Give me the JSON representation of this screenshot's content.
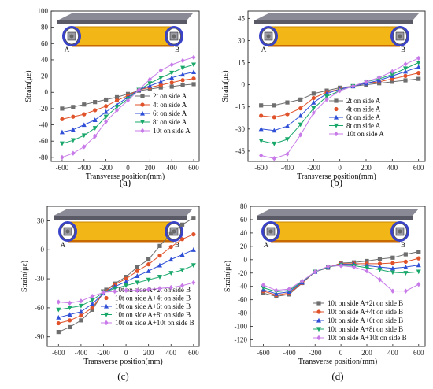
{
  "colors": {
    "2t": "#6e6e6e",
    "4t": "#e0522a",
    "6t": "#2f4fd6",
    "8t": "#19a86a",
    "10t": "#c87be8",
    "beam": "#f2b617",
    "deck": "#5a5a66"
  },
  "markers": [
    "square",
    "circle",
    "triangle-up",
    "triangle-down",
    "diamond"
  ],
  "diagram": {
    "label_a": "A",
    "label_b": "B"
  },
  "chart_data": [
    {
      "panel_label": "(a)",
      "type": "line",
      "xlabel": "Transverse position(mm)",
      "ylabel": "Strain(με)",
      "xlim": [
        -700,
        650
      ],
      "ylim": [
        -85,
        100
      ],
      "xticks": [
        -600,
        -400,
        -200,
        0,
        200,
        400,
        600
      ],
      "yticks": [
        -80,
        -60,
        -40,
        -20,
        0,
        20,
        40,
        60,
        80,
        100
      ],
      "x": [
        -600,
        -500,
        -400,
        -300,
        -200,
        -100,
        0,
        100,
        200,
        300,
        400,
        500,
        600
      ],
      "legend_position": "center-right",
      "series": [
        {
          "name": "2t    on side A",
          "key": "2t",
          "values": [
            -20,
            -18,
            -15,
            -12,
            -9,
            -6,
            -2,
            2,
            4,
            6,
            7,
            9,
            10
          ]
        },
        {
          "name": "4t    on side A",
          "key": "4t",
          "values": [
            -33,
            -30,
            -27,
            -22,
            -17,
            -10,
            -4,
            3,
            6,
            9,
            12,
            15,
            17
          ]
        },
        {
          "name": "6t    on side A",
          "key": "6t",
          "values": [
            -49,
            -46,
            -40,
            -34,
            -24,
            -15,
            -6,
            3,
            8,
            13,
            18,
            22,
            25
          ]
        },
        {
          "name": "8t    on side A",
          "key": "8t",
          "values": [
            -63,
            -59,
            -53,
            -44,
            -30,
            -18,
            -8,
            3,
            11,
            18,
            24,
            30,
            34
          ]
        },
        {
          "name": "10t  on side A",
          "key": "10t",
          "values": [
            -80,
            -75,
            -67,
            -54,
            -36,
            -22,
            -10,
            3,
            16,
            27,
            34,
            39,
            43
          ]
        }
      ]
    },
    {
      "panel_label": "(b)",
      "type": "line",
      "xlabel": "Transverse position(mm)",
      "ylabel": "Strain(με)",
      "xlim": [
        -700,
        650
      ],
      "ylim": [
        -52,
        50
      ],
      "xticks": [
        -600,
        -400,
        -200,
        0,
        200,
        400,
        600
      ],
      "yticks": [
        -45,
        -30,
        -15,
        0,
        15,
        30,
        45
      ],
      "x": [
        -600,
        -500,
        -400,
        -300,
        -200,
        -100,
        0,
        100,
        200,
        300,
        400,
        500,
        600
      ],
      "legend_position": "center-right",
      "series": [
        {
          "name": "2t    on side A",
          "key": "2t",
          "values": [
            -14,
            -14,
            -12,
            -10,
            -6,
            -4,
            -2,
            -1,
            0,
            1,
            2,
            3,
            4
          ]
        },
        {
          "name": "4t    on side A",
          "key": "4t",
          "values": [
            -21,
            -22,
            -20,
            -16,
            -9,
            -5,
            -3,
            -1,
            1,
            2,
            4,
            6,
            8
          ]
        },
        {
          "name": "6t    on side A",
          "key": "6t",
          "values": [
            -30,
            -31,
            -28,
            -21,
            -12,
            -6,
            -3,
            -1,
            1,
            3,
            6,
            9,
            12
          ]
        },
        {
          "name": "8t    on side A",
          "key": "8t",
          "values": [
            -38,
            -40,
            -37,
            -27,
            -16,
            -8,
            -4,
            -1,
            2,
            4,
            7,
            11,
            15
          ]
        },
        {
          "name": "10t  on side A",
          "key": "10t",
          "values": [
            -48,
            -50,
            -47,
            -34,
            -19,
            -10,
            -4,
            -1,
            2,
            5,
            9,
            14,
            18
          ]
        }
      ]
    },
    {
      "panel_label": "(c)",
      "type": "line",
      "xlabel": "Transverse position(mm)",
      "ylabel": "Strain(με)",
      "xlim": [
        -700,
        650
      ],
      "ylim": [
        -100,
        45
      ],
      "xticks": [
        -600,
        -400,
        -200,
        0,
        200,
        400,
        600
      ],
      "yticks": [
        -90,
        -60,
        -30,
        0,
        30
      ],
      "x": [
        -600,
        -500,
        -400,
        -300,
        -200,
        -100,
        0,
        100,
        200,
        300,
        400,
        500,
        600
      ],
      "legend_position": "bottom-right",
      "series": [
        {
          "name": "10t on side A+2t    on side B",
          "key": "2t",
          "values": [
            -85,
            -80,
            -73,
            -62,
            -44,
            -35,
            -28,
            -18,
            -10,
            4,
            17,
            26,
            33
          ]
        },
        {
          "name": "10t on side A+4t    on side B",
          "key": "4t",
          "values": [
            -76,
            -73,
            -68,
            -60,
            -44,
            -36,
            -30,
            -22,
            -15,
            -6,
            3,
            11,
            16
          ]
        },
        {
          "name": "10t on side A+6t    on side B",
          "key": "6t",
          "values": [
            -70,
            -67,
            -64,
            -56,
            -45,
            -38,
            -33,
            -27,
            -22,
            -16,
            -10,
            -5,
            0
          ]
        },
        {
          "name": "10t on side A+8t    on side B",
          "key": "8t",
          "values": [
            -62,
            -60,
            -58,
            -52,
            -44,
            -40,
            -37,
            -34,
            -31,
            -28,
            -24,
            -21,
            -16
          ]
        },
        {
          "name": "10t on side A+10t  on side B",
          "key": "10t",
          "values": [
            -54,
            -55,
            -53,
            -48,
            -44,
            -43,
            -42,
            -42,
            -41,
            -40,
            -39,
            -37,
            -34
          ]
        }
      ]
    },
    {
      "panel_label": "(d)",
      "type": "line",
      "xlabel": "Transverse position(mm)",
      "ylabel": "Strain(με)",
      "xlim": [
        -700,
        650
      ],
      "ylim": [
        -130,
        80
      ],
      "xticks": [
        -600,
        -400,
        -200,
        0,
        200,
        400,
        600
      ],
      "yticks": [
        -120,
        -100,
        -80,
        -60,
        -40,
        -20,
        0,
        20,
        40,
        60,
        80
      ],
      "x": [
        -600,
        -500,
        -400,
        -300,
        -200,
        -100,
        0,
        100,
        200,
        300,
        400,
        500,
        600
      ],
      "legend_position": "bottom-right",
      "series": [
        {
          "name": "10t on side A+2t    on side B",
          "key": "2t",
          "values": [
            -50,
            -55,
            -52,
            -35,
            -18,
            -12,
            -5,
            -4,
            -2,
            1,
            3,
            8,
            12
          ]
        },
        {
          "name": "10t on side A+4t    on side B",
          "key": "4t",
          "values": [
            -47,
            -53,
            -50,
            -35,
            -18,
            -11,
            -6,
            -6,
            -6,
            -6,
            -5,
            -3,
            2
          ]
        },
        {
          "name": "10t on side A+6t    on side B",
          "key": "6t",
          "values": [
            -45,
            -51,
            -48,
            -34,
            -18,
            -11,
            -7,
            -7,
            -9,
            -11,
            -13,
            -11,
            -8
          ]
        },
        {
          "name": "10t on side A+8t    on side B",
          "key": "8t",
          "values": [
            -42,
            -48,
            -46,
            -33,
            -18,
            -11,
            -8,
            -9,
            -12,
            -15,
            -19,
            -20,
            -18
          ]
        },
        {
          "name": "10t on side A+10t  on side B",
          "key": "10t",
          "values": [
            -38,
            -46,
            -44,
            -32,
            -18,
            -10,
            -9,
            -11,
            -17,
            -30,
            -47,
            -47,
            -37
          ]
        }
      ]
    }
  ]
}
